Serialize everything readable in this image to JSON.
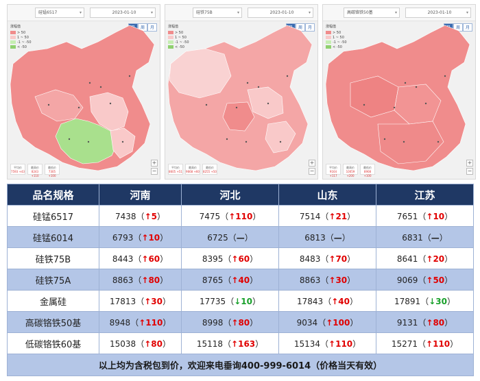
{
  "maps": [
    {
      "product_select": "硅锰6517",
      "date_select": "2023-01-10",
      "view_tabs": [
        "日",
        "周",
        "月"
      ],
      "legend_title": "涨幅值",
      "legend": [
        {
          "label": "> 50",
          "color": "#f08c8c"
        },
        {
          "label": "1 ~ 50",
          "color": "#f9c9c9"
        },
        {
          "label": "-1 ~ -50",
          "color": "#c6eeb2"
        },
        {
          "label": "< -50",
          "color": "#8fd06f"
        }
      ],
      "bottom_boxes": [
        {
          "label": "平均价",
          "value": "7593 +43"
        },
        {
          "label": "最高价",
          "value": "8243 +110"
        },
        {
          "label": "最低价",
          "value": "7305 +100"
        }
      ]
    },
    {
      "product_select": "硅铁75B",
      "date_select": "2023-01-10",
      "view_tabs": [
        "日",
        "周",
        "月"
      ],
      "legend_title": "涨幅值",
      "legend": [
        {
          "label": "> 50",
          "color": "#f08c8c"
        },
        {
          "label": "1 ~ 50",
          "color": "#f9c9c9"
        },
        {
          "label": "-1 ~ -50",
          "color": "#c6eeb2"
        },
        {
          "label": "< -50",
          "color": "#8fd06f"
        }
      ],
      "bottom_boxes": [
        {
          "label": "平均价",
          "value": "8605 +51"
        },
        {
          "label": "最高价",
          "value": "9668 +60"
        },
        {
          "label": "最低价",
          "value": "8255 +50"
        }
      ]
    },
    {
      "product_select": "高碳铬铁50基",
      "date_select": "2023-01-10",
      "view_tabs": [
        "日",
        "周",
        "月"
      ],
      "legend_title": "涨幅值",
      "legend": [
        {
          "label": "> 50",
          "color": "#f08c8c"
        },
        {
          "label": "1 ~ 50",
          "color": "#f9c9c9"
        },
        {
          "label": "-1 ~ -50",
          "color": "#c6eeb2"
        },
        {
          "label": "< -50",
          "color": "#8fd06f"
        }
      ],
      "bottom_boxes": [
        {
          "label": "平均价",
          "value": "9164 +117"
        },
        {
          "label": "最高价",
          "value": "10059 +200"
        },
        {
          "label": "最低价",
          "value": "8908 +100"
        }
      ]
    }
  ],
  "table": {
    "headers": [
      "品名规格",
      "河南",
      "河北",
      "山东",
      "江苏"
    ],
    "rows": [
      {
        "name": "硅锰6517",
        "cells": [
          {
            "price": "7438",
            "dir": "up",
            "change": "5"
          },
          {
            "price": "7475",
            "dir": "up",
            "change": "110"
          },
          {
            "price": "7514",
            "dir": "up",
            "change": "21"
          },
          {
            "price": "7651",
            "dir": "up",
            "change": "10"
          }
        ]
      },
      {
        "name": "硅锰6014",
        "cells": [
          {
            "price": "6793",
            "dir": "up",
            "change": "10"
          },
          {
            "price": "6725",
            "dir": "flat",
            "change": "—"
          },
          {
            "price": "6813",
            "dir": "flat",
            "change": "—"
          },
          {
            "price": "6831",
            "dir": "flat",
            "change": "—"
          }
        ]
      },
      {
        "name": "硅铁75B",
        "cells": [
          {
            "price": "8443",
            "dir": "up",
            "change": "60"
          },
          {
            "price": "8395",
            "dir": "up",
            "change": "60"
          },
          {
            "price": "8483",
            "dir": "up",
            "change": "70"
          },
          {
            "price": "8641",
            "dir": "up",
            "change": "20"
          }
        ]
      },
      {
        "name": "硅铁75A",
        "cells": [
          {
            "price": "8863",
            "dir": "up",
            "change": "80"
          },
          {
            "price": "8765",
            "dir": "up",
            "change": "40"
          },
          {
            "price": "8863",
            "dir": "up",
            "change": "30"
          },
          {
            "price": "9069",
            "dir": "up",
            "change": "50"
          }
        ]
      },
      {
        "name": "金属硅",
        "cells": [
          {
            "price": "17813",
            "dir": "up",
            "change": "30"
          },
          {
            "price": "17735",
            "dir": "down",
            "change": "10"
          },
          {
            "price": "17843",
            "dir": "up",
            "change": "40"
          },
          {
            "price": "17891",
            "dir": "down",
            "change": "30"
          }
        ]
      },
      {
        "name": "高碳铬铁50基",
        "cells": [
          {
            "price": "8948",
            "dir": "up",
            "change": "110"
          },
          {
            "price": "8998",
            "dir": "up",
            "change": "80"
          },
          {
            "price": "9034",
            "dir": "up",
            "change": "100"
          },
          {
            "price": "9131",
            "dir": "up",
            "change": "80"
          }
        ]
      },
      {
        "name": "低碳铬铁60基",
        "cells": [
          {
            "price": "15038",
            "dir": "up",
            "change": "80"
          },
          {
            "price": "15118",
            "dir": "up",
            "change": "163"
          },
          {
            "price": "15134",
            "dir": "up",
            "change": "110"
          },
          {
            "price": "15271",
            "dir": "up",
            "change": "110"
          }
        ]
      }
    ],
    "footer": "以上均为含税包到价，欢迎来电垂询400-999-6014（价格当天有效）"
  }
}
